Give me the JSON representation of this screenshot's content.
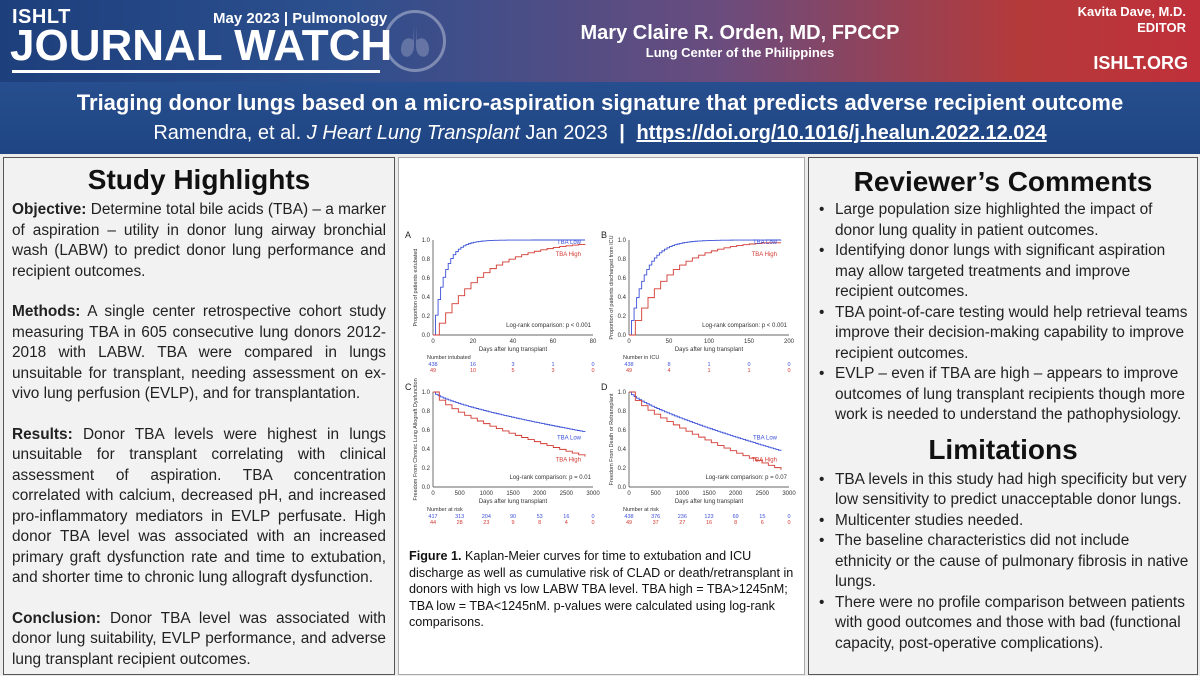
{
  "header": {
    "brand_small": "ISHLT",
    "brand_date": "May 2023 | Pulmonology",
    "brand_big": "JOURNAL WATCH",
    "author_name": "Mary Claire R. Orden, MD, FPCCP",
    "author_affil": "Lung Center of the Philippines",
    "editor_name": "Kavita Dave, M.D.",
    "editor_role": "EDITOR",
    "site": "ISHLT.ORG"
  },
  "title": {
    "main": "Triaging donor lungs based on a micro-aspiration signature that predicts adverse recipient outcome",
    "authors": "Ramendra, et al.",
    "journal": "J Heart Lung Transplant",
    "date": "Jan 2023",
    "separator": "|",
    "doi": "https://doi.org/10.1016/j.healun.2022.12.024"
  },
  "highlights": {
    "heading": "Study Highlights",
    "objective_label": "Objective:",
    "objective_text": " Determine total bile acids (TBA) – a marker of aspiration – utility in donor lung airway bronchial wash (LABW) to predict donor lung performance and recipient outcomes.",
    "methods_label": "Methods:",
    "methods_text": " A single center retrospective cohort study measuring TBA in 605 consecutive lung donors 2012-2018 with LABW. TBA were compared in lungs unsuitable for transplant, needing assessment on ex-vivo lung perfusion (EVLP), and for transplantation.",
    "results_label": "Results:",
    "results_text": " Donor TBA levels were highest in lungs unsuitable for transplant correlating with clinical assessment of aspiration. TBA concentration correlated with calcium, decreased pH, and increased pro-inflammatory mediators in EVLP perfusate. High donor TBA level was associated with an increased primary graft dysfunction rate and time to extubation, and shorter time to chronic lung allograft dysfunction.",
    "conclusion_label": "Conclusion:",
    "conclusion_text": " Donor TBA level was associated with donor lung suitability, EVLP performance, and adverse lung transplant recipient outcomes."
  },
  "figure": {
    "panels": [
      {
        "letter": "A",
        "ylabel": "Proportion of patients extubated",
        "xlabel": "Days after lung transplant",
        "pval": "Log-rank comparison: p < 0.001",
        "xticks": [
          "0",
          "20",
          "40",
          "60",
          "80"
        ],
        "yticks": [
          "0.0",
          "0.2",
          "0.4",
          "0.6",
          "0.8",
          "1.0"
        ],
        "risk_title": "Number intubated",
        "risk_low": [
          "438",
          "16",
          "3",
          "1",
          "0"
        ],
        "risk_high": [
          "49",
          "10",
          "5",
          "3",
          "0"
        ]
      },
      {
        "letter": "B",
        "ylabel": "Proportion of patients discharged from ICU",
        "xlabel": "Days after lung transplant",
        "pval": "Log-rank comparison: p < 0.001",
        "xticks": [
          "0",
          "50",
          "100",
          "150",
          "200"
        ],
        "yticks": [
          "0.0",
          "0.2",
          "0.4",
          "0.6",
          "0.8",
          "1.0"
        ],
        "risk_title": "Number in ICU",
        "risk_low": [
          "438",
          "8",
          "1",
          "0",
          "0"
        ],
        "risk_high": [
          "49",
          "4",
          "1",
          "1",
          "0"
        ]
      },
      {
        "letter": "C",
        "ylabel": "Freedom From Chronic Lung Allograft Dysfunction",
        "xlabel": "Days after lung transplant",
        "pval": "Log-rank comparison: p = 0.01",
        "xticks": [
          "0",
          "500",
          "1000",
          "1500",
          "2000",
          "2500",
          "3000"
        ],
        "yticks": [
          "0.0",
          "0.2",
          "0.4",
          "0.6",
          "0.8",
          "1.0"
        ],
        "risk_title": "Number at risk",
        "risk_low": [
          "417",
          "313",
          "204",
          "90",
          "53",
          "16",
          "0"
        ],
        "risk_high": [
          "44",
          "28",
          "23",
          "9",
          "8",
          "4",
          "0"
        ]
      },
      {
        "letter": "D",
        "ylabel": "Freedom From Death or Retransplant",
        "xlabel": "Days after lung transplant",
        "pval": "Log-rank comparison: p = 0.07",
        "xticks": [
          "0",
          "500",
          "1000",
          "1500",
          "2000",
          "2500",
          "3000"
        ],
        "yticks": [
          "0.0",
          "0.2",
          "0.4",
          "0.6",
          "0.8",
          "1.0"
        ],
        "risk_title": "Number at risk",
        "risk_low": [
          "438",
          "376",
          "236",
          "123",
          "69",
          "15",
          "0"
        ],
        "risk_high": [
          "49",
          "37",
          "27",
          "16",
          "8",
          "6",
          "0"
        ]
      }
    ],
    "legend_low": "TBA Low",
    "legend_high": "TBA High",
    "color_low": "#3b50d8",
    "color_high": "#d23a32",
    "caption_label": "Figure 1.",
    "caption_text": " Kaplan-Meier curves for time to extubation and ICU discharge as well as cumulative risk of CLAD or death/retransplant in donors with high vs low LABW TBA level.  TBA high = TBA>1245nM; TBA low = TBA<1245nM. p-values were calculated using log-rank comparisons."
  },
  "reviewer": {
    "heading": "Reviewer’s Comments",
    "items": [
      "Large population size highlighted the impact of donor lung quality in patient outcomes.",
      "Identifying donor lungs with significant aspiration may allow targeted treatments and improve recipient outcomes.",
      "TBA point-of-care testing would help retrieval teams improve their decision-making capability to improve recipient outcomes.",
      "EVLP – even if TBA are high – appears to improve outcomes of lung transplant recipients though more work is needed to understand the pathophysiology."
    ]
  },
  "limitations": {
    "heading": "Limitations",
    "items": [
      "TBA levels in this study had high specificity but very low sensitivity to predict unacceptable donor lungs.",
      "Multicenter studies needed.",
      "The baseline characteristics did not include ethnicity or the cause of pulmonary fibrosis in native lungs.",
      "There were no profile comparison between patients with good outcomes and those with bad (functional capacity, post-operative complications)."
    ]
  }
}
